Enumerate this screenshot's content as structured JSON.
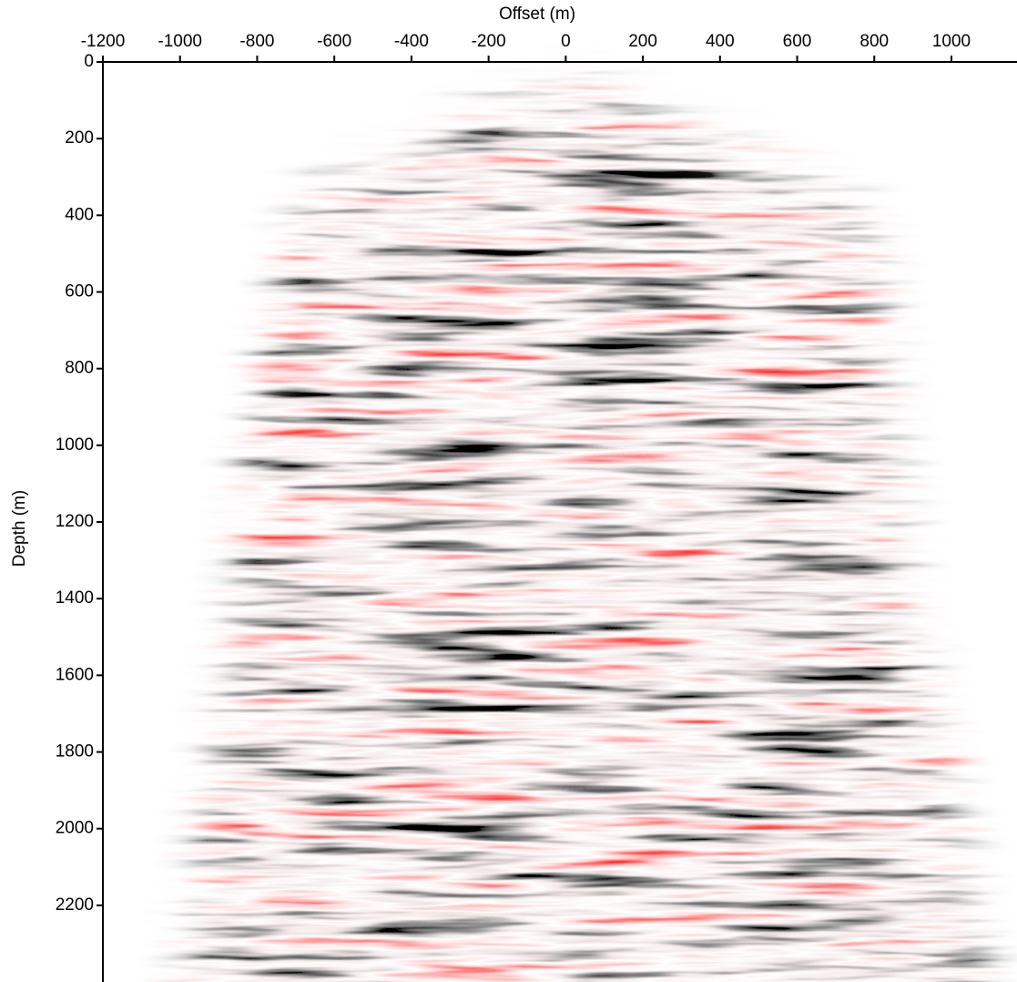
{
  "chart_data": {
    "type": "image",
    "xlabel": "Offset (m)",
    "ylabel": "Depth (m)",
    "xlim": [
      -1200,
      1170
    ],
    "xticks": [
      -1200,
      -1000,
      -800,
      -600,
      -400,
      -200,
      0,
      200,
      400,
      600,
      800,
      1000
    ],
    "ylim": [
      2400,
      0
    ],
    "yticks": [
      0,
      200,
      400,
      600,
      800,
      1000,
      1200,
      1400,
      1600,
      1800,
      2000,
      2200
    ],
    "xaxis_position": "top"
  }
}
